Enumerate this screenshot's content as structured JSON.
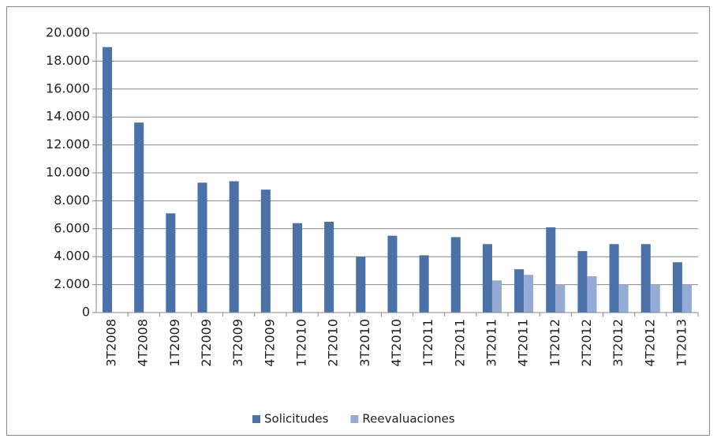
{
  "chart_data": {
    "type": "bar",
    "categories": [
      "3T2008",
      "4T2008",
      "1T2009",
      "2T2009",
      "3T2009",
      "4T2009",
      "1T2010",
      "2T2010",
      "3T2010",
      "4T2010",
      "1T2011",
      "2T2011",
      "3T2011",
      "4T2011",
      "1T2012",
      "2T2012",
      "3T2012",
      "4T2012",
      "1T2013"
    ],
    "series": [
      {
        "name": "Solicitudes",
        "color": "#4a72a8",
        "values": [
          19000,
          13600,
          7100,
          9300,
          9400,
          8800,
          6400,
          6500,
          4000,
          5500,
          4100,
          5400,
          4900,
          3100,
          6100,
          4400,
          4900,
          4900,
          3600
        ]
      },
      {
        "name": "Reevaluaciones",
        "color": "#95abd6",
        "values": [
          null,
          null,
          null,
          null,
          null,
          null,
          null,
          null,
          null,
          null,
          null,
          null,
          2300,
          2700,
          2000,
          2600,
          2000,
          2000,
          2000
        ]
      }
    ],
    "ylim": [
      0,
      20000
    ],
    "yticks": [
      0,
      {
        "value": 2000,
        "label": "2.000"
      },
      {
        "value": 4000,
        "label": "4.000"
      },
      {
        "value": 6000,
        "label": "6.000"
      },
      {
        "value": 8000,
        "label": "8.000"
      },
      {
        "value": 10000,
        "label": "10.000"
      },
      {
        "value": 12000,
        "label": "12.000"
      },
      {
        "value": 14000,
        "label": "14.000"
      },
      {
        "value": 16000,
        "label": "16.000"
      },
      {
        "value": 18000,
        "label": "18.000"
      },
      {
        "value": 20000,
        "label": "20.000"
      }
    ],
    "grid": true,
    "legend": "bottom"
  }
}
